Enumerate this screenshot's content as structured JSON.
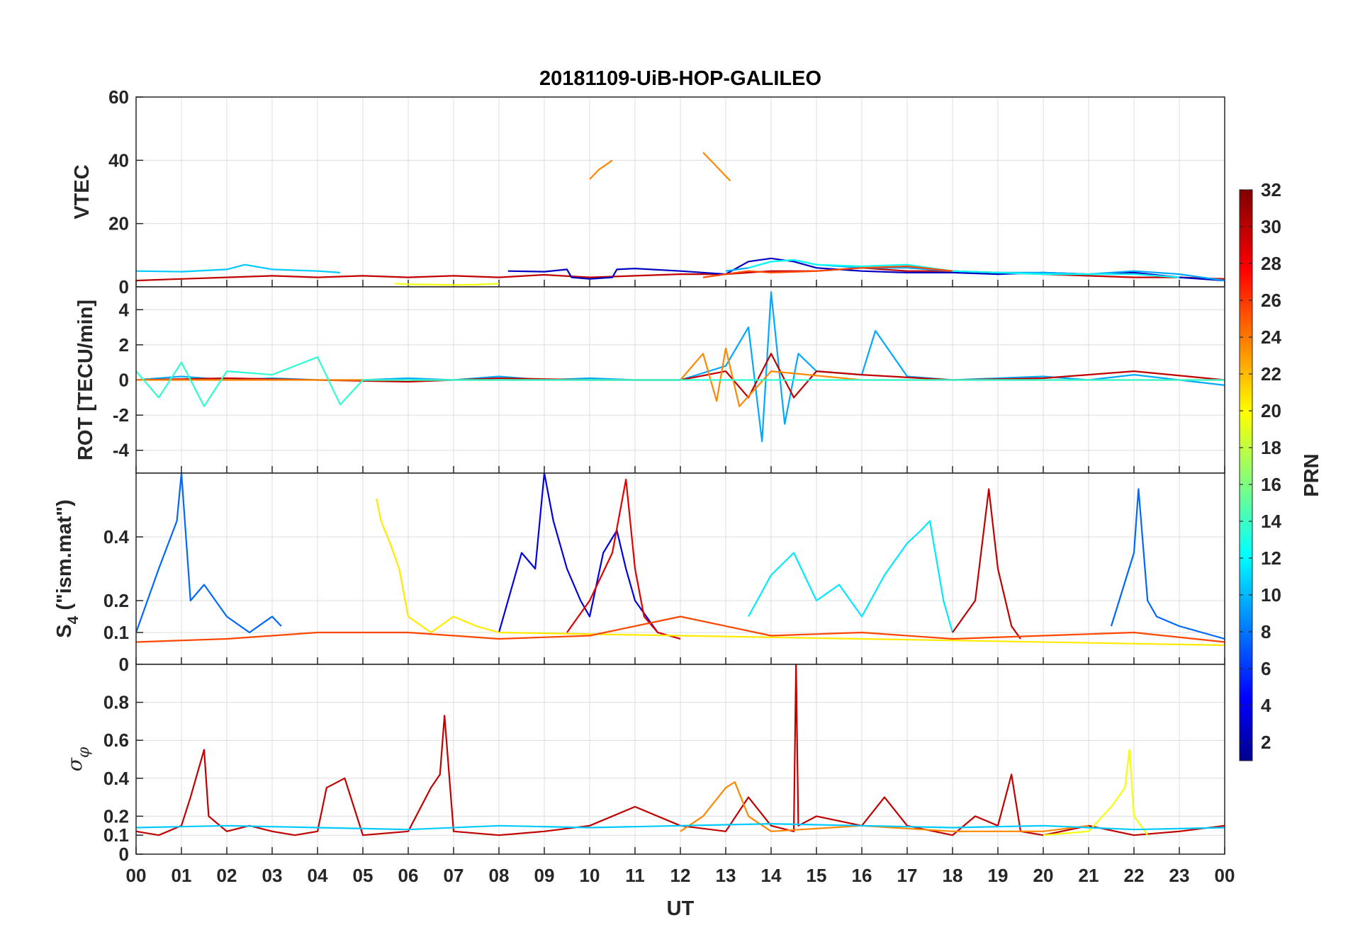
{
  "chart_data": {
    "type": "line",
    "title": "20181109-UiB-HOP-GALILEO",
    "xlabel": "UT",
    "x_tick_labels": [
      "00",
      "01",
      "02",
      "03",
      "04",
      "05",
      "06",
      "07",
      "08",
      "09",
      "10",
      "11",
      "12",
      "13",
      "14",
      "15",
      "16",
      "17",
      "18",
      "19",
      "20",
      "21",
      "22",
      "23",
      "00"
    ],
    "xlim": [
      0,
      24
    ],
    "colorbar": {
      "label": "PRN",
      "range": [
        1,
        32
      ],
      "ticks": [
        "2",
        "4",
        "6",
        "8",
        "10",
        "12",
        "14",
        "16",
        "18",
        "20",
        "22",
        "24",
        "26",
        "28",
        "30",
        "32"
      ],
      "colormap": "jet"
    },
    "panels": [
      {
        "id": "vtec",
        "ylabel": "VTEC",
        "ylim": [
          0,
          60
        ],
        "y_ticks": [
          "0",
          "20",
          "40",
          "60"
        ],
        "series_note": "multi-PRN traces",
        "series": [
          {
            "prn": 11,
            "x": [
              0,
              1,
              2,
              2.4,
              3,
              4,
              4.5
            ],
            "y": [
              5,
              4.8,
              5.5,
              7,
              5.5,
              5,
              4.5
            ]
          },
          {
            "prn": 30,
            "x": [
              0,
              1,
              2,
              3,
              4,
              5,
              6,
              7,
              8,
              9,
              10,
              11,
              12,
              13,
              14,
              15,
              16,
              17,
              18,
              19,
              20,
              21,
              22,
              23,
              24
            ],
            "y": [
              2,
              2.5,
              3,
              3.5,
              3,
              3.5,
              3,
              3.5,
              3,
              3.8,
              3,
              3.5,
              4,
              4,
              5,
              5,
              6,
              5,
              5,
              4.5,
              4,
              3.5,
              3,
              3,
              2.5
            ]
          },
          {
            "prn": 3,
            "x": [
              8.2,
              9,
              9.5,
              9.6,
              10,
              10.5,
              10.6,
              11,
              12,
              13,
              13.5,
              14,
              14.5,
              15,
              16,
              17,
              18,
              19,
              20,
              21,
              22,
              23,
              24
            ],
            "y": [
              5,
              4.8,
              5.5,
              3,
              2.5,
              3,
              5.5,
              5.8,
              5,
              4,
              8,
              9,
              8,
              6,
              5,
              4.5,
              4.5,
              4,
              4.5,
              4,
              4.5,
              3,
              2
            ]
          },
          {
            "prn": 10,
            "x": [
              13,
              13.5,
              14,
              14.5,
              15,
              16,
              17,
              18,
              19,
              20,
              21,
              22,
              23,
              24
            ],
            "y": [
              5,
              6,
              8,
              8.5,
              7,
              6,
              6,
              5,
              4.5,
              4.5,
              4,
              5,
              4,
              2
            ]
          },
          {
            "prn": 13,
            "x": [
              13.5,
              14,
              14.5,
              15,
              16,
              17,
              18,
              19,
              20,
              21,
              22,
              23
            ],
            "y": [
              6,
              8,
              8.5,
              7,
              6.5,
              7,
              5,
              4.5,
              4,
              4,
              4,
              3
            ]
          },
          {
            "prn": 20,
            "x": [
              5.7,
              6,
              7,
              7.5,
              8
            ],
            "y": [
              1,
              0.8,
              0.6,
              0.7,
              1
            ]
          },
          {
            "prn": 24,
            "x": [
              10,
              10.2,
              10.5
            ],
            "y": [
              34,
              37,
              40
            ]
          },
          {
            "prn": 24,
            "x": [
              12.5,
              12.8,
              13.1
            ],
            "y": [
              42.5,
              38,
              33.5
            ]
          },
          {
            "prn": 26,
            "x": [
              12.5,
              13,
              13.5,
              14,
              15,
              16,
              17,
              18
            ],
            "y": [
              3,
              4,
              5,
              4.5,
              5,
              6,
              6.5,
              5
            ]
          }
        ]
      },
      {
        "id": "rot",
        "ylabel": "ROT [TECU/min]",
        "ylim": [
          -5.3,
          5.3
        ],
        "y_ticks": [
          "-4",
          "-2",
          "0",
          "2",
          "4"
        ],
        "series_note": "multi-PRN traces; burst near 13–15 UT",
        "series": [
          {
            "prn": 10,
            "x": [
              0,
              1,
              2,
              3,
              4,
              5,
              6,
              7,
              8,
              9,
              10,
              11,
              12,
              13,
              13.5,
              13.8,
              14,
              14.3,
              14.6,
              15,
              16,
              16.3,
              17,
              18,
              19,
              20,
              21,
              22,
              23,
              24
            ],
            "y": [
              0,
              0.2,
              0,
              0.1,
              0,
              0,
              0.1,
              0,
              0.2,
              0,
              0.1,
              0,
              0,
              0.8,
              3,
              -3.5,
              5,
              -2.5,
              1.5,
              0.5,
              0.3,
              2.8,
              0.2,
              0,
              0.1,
              0.2,
              0,
              0.3,
              0,
              -0.3
            ]
          },
          {
            "prn": 30,
            "x": [
              0,
              2,
              4,
              6,
              8,
              10,
              12,
              13,
              13.5,
              14,
              14.5,
              15,
              16,
              18,
              20,
              22,
              24
            ],
            "y": [
              0,
              0.1,
              0,
              -0.1,
              0.1,
              0,
              0,
              0.5,
              -1,
              1.5,
              -1,
              0.5,
              0.3,
              0,
              0.1,
              0.5,
              0
            ]
          },
          {
            "prn": 24,
            "x": [
              0,
              2,
              4,
              6,
              8,
              10,
              12,
              12.5,
              12.8,
              13,
              13.3,
              14,
              16,
              18,
              20,
              22,
              24
            ],
            "y": [
              0,
              0,
              0,
              0,
              0,
              0,
              0,
              1.5,
              -1.2,
              1.8,
              -1.5,
              0.5,
              0,
              0,
              0,
              0,
              0
            ]
          },
          {
            "prn": 14,
            "x": [
              0,
              0.5,
              1,
              1.5,
              2,
              3,
              4,
              4.5,
              5,
              24
            ],
            "y": [
              0.5,
              -1,
              1,
              -1.5,
              0.5,
              0.3,
              1.3,
              -1.4,
              0,
              0
            ]
          }
        ]
      },
      {
        "id": "s4",
        "ylabel": "S4 (\"ism.mat\")",
        "ylabel_main": "S",
        "ylabel_sub": "4",
        "ylabel_rest": " (\"ism.mat\")",
        "ylim": [
          0,
          0.6
        ],
        "y_ticks": [
          "0",
          "0.1",
          "0.2",
          "0.4"
        ],
        "series_note": "multi-PRN traces",
        "series": [
          {
            "prn": 8,
            "x": [
              0,
              0.5,
              0.9,
              1,
              1.2,
              1.5,
              2,
              2.5,
              3,
              3.2
            ],
            "y": [
              0.1,
              0.3,
              0.45,
              0.6,
              0.2,
              0.25,
              0.15,
              0.1,
              0.15,
              0.12
            ]
          },
          {
            "prn": 4,
            "x": [
              8,
              8.5,
              8.8,
              9,
              9.2,
              9.5,
              9.8,
              10,
              10.3,
              10.6,
              10.8,
              11,
              11.5,
              12
            ],
            "y": [
              0.1,
              0.35,
              0.3,
              0.6,
              0.45,
              0.3,
              0.2,
              0.15,
              0.35,
              0.42,
              0.3,
              0.2,
              0.1,
              0.08
            ]
          },
          {
            "prn": 29,
            "x": [
              9.5,
              10,
              10.5,
              10.8,
              11,
              11.2,
              11.5,
              12
            ],
            "y": [
              0.1,
              0.2,
              0.35,
              0.58,
              0.3,
              0.15,
              0.1,
              0.08
            ]
          },
          {
            "prn": 21,
            "x": [
              5.3,
              5.4,
              5.6,
              5.8,
              6,
              6.5,
              7,
              7.5,
              8,
              24
            ],
            "y": [
              0.52,
              0.45,
              0.38,
              0.3,
              0.15,
              0.1,
              0.15,
              0.12,
              0.1,
              0.06
            ]
          },
          {
            "prn": 12,
            "x": [
              13.5,
              14,
              14.5,
              15,
              15.5,
              16,
              16.5,
              17,
              17.3,
              17.5,
              17.8,
              18
            ],
            "y": [
              0.15,
              0.28,
              0.35,
              0.2,
              0.25,
              0.15,
              0.28,
              0.38,
              0.42,
              0.45,
              0.2,
              0.1
            ]
          },
          {
            "prn": 30,
            "x": [
              18,
              18.5,
              18.8,
              19,
              19.3,
              19.5
            ],
            "y": [
              0.1,
              0.2,
              0.55,
              0.3,
              0.12,
              0.08
            ]
          },
          {
            "prn": 8,
            "x": [
              21.5,
              22,
              22.1,
              22.3,
              22.5,
              23,
              23.5,
              24
            ],
            "y": [
              0.12,
              0.35,
              0.55,
              0.2,
              0.15,
              0.12,
              0.1,
              0.08
            ]
          },
          {
            "prn": 26,
            "x": [
              0,
              2,
              4,
              6,
              8,
              10,
              12,
              14,
              16,
              18,
              20,
              22,
              24
            ],
            "y": [
              0.07,
              0.08,
              0.1,
              0.1,
              0.08,
              0.09,
              0.15,
              0.09,
              0.1,
              0.08,
              0.09,
              0.1,
              0.07
            ]
          }
        ]
      },
      {
        "id": "sigma_phi",
        "ylabel": "σφ",
        "ylabel_main": "σ",
        "ylabel_sub": "φ",
        "ylim": [
          0,
          1
        ],
        "y_ticks": [
          "0",
          "0.1",
          "0.2",
          "0.4",
          "0.6",
          "0.8"
        ],
        "series_note": "multi-PRN traces",
        "series": [
          {
            "prn": 30,
            "x": [
              0,
              0.5,
              1,
              1.2,
              1.5,
              1.6,
              2,
              2.5,
              3,
              3.5,
              4,
              4.2,
              4.6,
              5,
              6,
              6.5,
              6.7,
              6.8,
              7,
              8,
              9,
              10,
              11,
              12,
              13,
              13.5,
              14,
              14.5,
              14.55,
              14.6,
              15,
              16,
              16.5,
              17,
              18,
              18.5,
              19,
              19.3,
              19.5,
              20,
              21,
              22,
              23,
              24
            ],
            "y": [
              0.12,
              0.1,
              0.15,
              0.3,
              0.55,
              0.2,
              0.12,
              0.15,
              0.12,
              0.1,
              0.12,
              0.35,
              0.4,
              0.1,
              0.12,
              0.35,
              0.42,
              0.73,
              0.12,
              0.1,
              0.12,
              0.15,
              0.25,
              0.15,
              0.12,
              0.3,
              0.15,
              0.12,
              1.0,
              0.15,
              0.2,
              0.15,
              0.3,
              0.15,
              0.1,
              0.2,
              0.15,
              0.42,
              0.12,
              0.1,
              0.15,
              0.1,
              0.12,
              0.15
            ]
          },
          {
            "prn": 20,
            "x": [
              20,
              21,
              21.5,
              21.8,
              21.9,
              22,
              22.3
            ],
            "y": [
              0.1,
              0.12,
              0.25,
              0.35,
              0.55,
              0.2,
              0.1
            ]
          },
          {
            "prn": 24,
            "x": [
              12,
              12.5,
              13,
              13.2,
              13.5,
              14,
              16,
              18,
              20,
              21
            ],
            "y": [
              0.12,
              0.2,
              0.35,
              0.38,
              0.2,
              0.12,
              0.15,
              0.12,
              0.12,
              0.15
            ]
          },
          {
            "prn": 11,
            "x": [
              0,
              2,
              4,
              6,
              8,
              10,
              12,
              14,
              16,
              18,
              20,
              22,
              24
            ],
            "y": [
              0.14,
              0.15,
              0.14,
              0.13,
              0.15,
              0.14,
              0.15,
              0.16,
              0.15,
              0.14,
              0.15,
              0.13,
              0.14
            ]
          }
        ]
      }
    ]
  }
}
